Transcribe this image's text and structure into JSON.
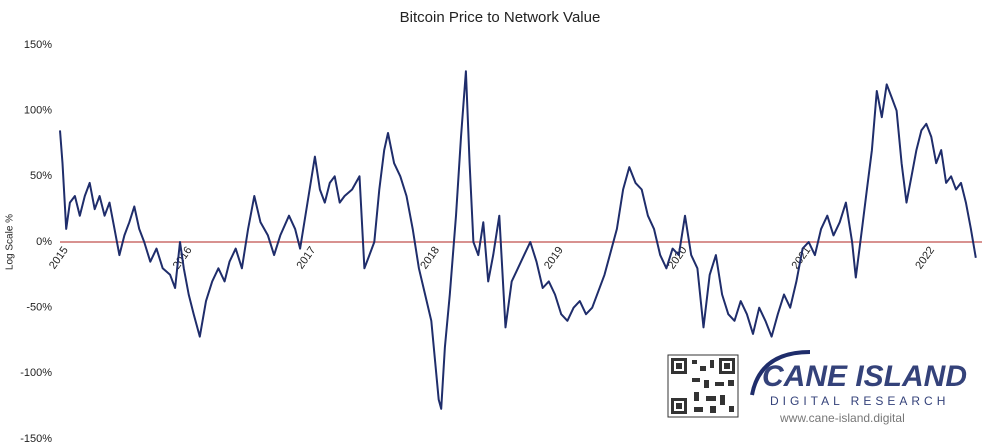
{
  "chart_data": {
    "type": "line",
    "title": "Bitcoin Price to Network Value",
    "ylabel": "Log Scale %",
    "x": [
      2015.0,
      2015.02,
      2015.05,
      2015.08,
      2015.12,
      2015.16,
      2015.2,
      2015.24,
      2015.28,
      2015.32,
      2015.36,
      2015.4,
      2015.44,
      2015.48,
      2015.52,
      2015.56,
      2015.6,
      2015.64,
      2015.68,
      2015.73,
      2015.78,
      2015.83,
      2015.89,
      2015.93,
      2015.97,
      2016.0,
      2016.04,
      2016.08,
      2016.13,
      2016.18,
      2016.23,
      2016.28,
      2016.33,
      2016.37,
      2016.42,
      2016.47,
      2016.52,
      2016.57,
      2016.62,
      2016.68,
      2016.73,
      2016.78,
      2016.85,
      2016.9,
      2016.94,
      2017.0,
      2017.06,
      2017.1,
      2017.14,
      2017.18,
      2017.22,
      2017.26,
      2017.3,
      2017.36,
      2017.42,
      2017.46,
      2017.5,
      2017.54,
      2017.58,
      2017.62,
      2017.65,
      2017.7,
      2017.75,
      2017.8,
      2017.85,
      2017.9,
      2017.95,
      2018.0,
      2018.03,
      2018.06,
      2018.08,
      2018.11,
      2018.15,
      2018.2,
      2018.24,
      2018.28,
      2018.31,
      2018.34,
      2018.38,
      2018.42,
      2018.46,
      2018.5,
      2018.55,
      2018.6,
      2018.65,
      2018.7,
      2018.75,
      2018.8,
      2018.85,
      2018.9,
      2018.95,
      2019.0,
      2019.05,
      2019.1,
      2019.15,
      2019.2,
      2019.25,
      2019.3,
      2019.4,
      2019.5,
      2019.55,
      2019.6,
      2019.65,
      2019.7,
      2019.75,
      2019.8,
      2019.85,
      2019.9,
      2019.95,
      2020.0,
      2020.05,
      2020.1,
      2020.15,
      2020.2,
      2020.25,
      2020.3,
      2020.35,
      2020.4,
      2020.45,
      2020.5,
      2020.55,
      2020.6,
      2020.65,
      2020.7,
      2020.75,
      2020.8,
      2020.85,
      2020.9,
      2020.95,
      2021.0,
      2021.05,
      2021.1,
      2021.15,
      2021.2,
      2021.25,
      2021.3,
      2021.35,
      2021.4,
      2021.43,
      2021.48,
      2021.52,
      2021.56,
      2021.6,
      2021.64,
      2021.68,
      2021.72,
      2021.76,
      2021.8,
      2021.84,
      2021.88,
      2021.92,
      2021.96,
      2022.0,
      2022.04,
      2022.08,
      2022.12,
      2022.16,
      2022.2,
      2022.24,
      2022.28,
      2022.32,
      2022.36,
      2022.4
    ],
    "values": [
      85,
      60,
      10,
      30,
      35,
      20,
      35,
      45,
      25,
      35,
      20,
      30,
      10,
      -10,
      5,
      15,
      27,
      10,
      0,
      -15,
      -5,
      -20,
      -25,
      -35,
      0,
      -20,
      -40,
      -55,
      -72,
      -45,
      -30,
      -20,
      -30,
      -15,
      -5,
      -20,
      10,
      35,
      15,
      5,
      -10,
      5,
      20,
      10,
      -5,
      30,
      65,
      40,
      30,
      45,
      50,
      30,
      35,
      40,
      50,
      -20,
      -10,
      0,
      40,
      70,
      83,
      60,
      50,
      35,
      10,
      -20,
      -40,
      -60,
      -90,
      -120,
      -127,
      -80,
      -40,
      20,
      80,
      130,
      60,
      0,
      -10,
      15,
      -30,
      -10,
      20,
      -65,
      -30,
      -20,
      -10,
      0,
      -15,
      -35,
      -30,
      -40,
      -55,
      -60,
      -50,
      -45,
      -55,
      -50,
      -25,
      10,
      40,
      57,
      45,
      40,
      20,
      10,
      -10,
      -20,
      -5,
      -10,
      20,
      -10,
      -20,
      -65,
      -25,
      -10,
      -40,
      -55,
      -60,
      -45,
      -55,
      -70,
      -50,
      -60,
      -72,
      -55,
      -40,
      -50,
      -30,
      -5,
      0,
      -10,
      10,
      20,
      5,
      15,
      30,
      0,
      -27,
      10,
      40,
      70,
      115,
      95,
      120,
      110,
      100,
      60,
      30,
      50,
      70,
      85,
      90,
      80,
      60,
      70,
      45,
      50,
      40,
      45,
      30,
      10,
      -12
    ],
    "color": "#1f2d6b",
    "xlim": [
      2015,
      2022.45
    ],
    "xticks": [
      2015,
      2016,
      2017,
      2018,
      2019,
      2020,
      2021,
      2022
    ],
    "ylim": [
      -150,
      150
    ],
    "yticks": [
      {
        "value": -150,
        "label": "-150%"
      },
      {
        "value": -100,
        "label": "-100%"
      },
      {
        "value": -50,
        "label": "-50%"
      },
      {
        "value": 0,
        "label": "0%"
      },
      {
        "value": 50,
        "label": "50%"
      },
      {
        "value": 100,
        "label": "100%"
      },
      {
        "value": 150,
        "label": "150%"
      }
    ],
    "reference_line": {
      "value": 0,
      "color": "#c0504d"
    },
    "logo_text": [
      "CANE ISLAND",
      "DIGITAL RESEARCH",
      "www.cane-island.digital"
    ]
  }
}
